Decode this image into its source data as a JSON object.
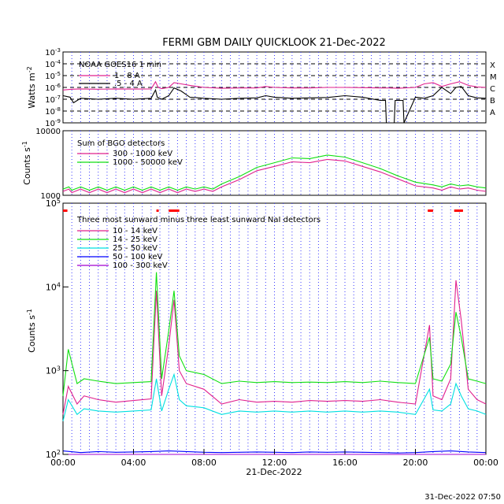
{
  "title": "FERMI GBM DAILY QUICKLOOK  21-Dec-2022",
  "footer_timestamp": "31-Dec-2022 07:50",
  "colors": {
    "magenta": "#e0208e",
    "green": "#10e010",
    "cyan": "#00e0e0",
    "blue": "#0000ff",
    "purple": "#a000d0",
    "black": "#000000",
    "red": "#ff0000",
    "grid_blue": "#3a3aff"
  },
  "chart_data": [
    {
      "id": "goes",
      "type": "line",
      "ylabel": "Watts m^-2",
      "yscale": "log",
      "ylim": [
        1e-09,
        0.001
      ],
      "y_ticks": [
        "10^-9",
        "10^-8",
        "10^-7",
        "10^-6",
        "10^-5",
        "10^-4",
        "10^-3"
      ],
      "flare_classes": [
        "A",
        "B",
        "C",
        "M",
        "X"
      ],
      "legend_title": "NOAA GOES16 1 min",
      "series": [
        {
          "name": "1 - 8 A",
          "color": "magenta",
          "x": [
            0,
            0.5,
            1,
            2,
            3,
            4,
            5,
            5.25,
            5.4,
            5.6,
            6,
            6.3,
            6.7,
            7.2,
            8,
            9,
            10,
            11,
            11.5,
            12,
            13,
            14,
            15,
            16,
            17,
            18,
            18.5,
            19,
            20,
            20.5,
            21,
            21.5,
            22,
            22.5,
            23,
            23.5,
            24
          ],
          "values": [
            6e-07,
            7e-07,
            7.5e-07,
            7e-07,
            7.5e-07,
            7.2e-07,
            7.5e-07,
            3e-06,
            1e-06,
            8e-07,
            1e-06,
            2.5e-06,
            2e-06,
            1.5e-06,
            1e-06,
            8.5e-07,
            9e-07,
            9e-07,
            1.2e-06,
            1e-06,
            9e-07,
            9e-07,
            1e-06,
            1e-06,
            9.5e-07,
            9e-07,
            9e-07,
            8.5e-07,
            1e-06,
            2e-06,
            2.5e-06,
            1.2e-06,
            2e-06,
            3e-06,
            1.5e-06,
            1.1e-06,
            1e-06
          ]
        },
        {
          "name": ".5 - 4 A",
          "color": "black",
          "x": [
            0,
            0.4,
            0.6,
            1,
            2,
            3,
            4,
            5,
            5.25,
            5.35,
            5.6,
            6,
            6.3,
            6.7,
            7.2,
            8,
            9,
            10,
            11,
            11.5,
            12,
            13,
            14,
            15,
            16,
            17,
            18,
            18.3,
            18.35,
            18.8,
            18.85,
            19.3,
            19.35,
            20,
            20.5,
            21,
            21.5,
            22,
            22.3,
            22.6,
            23,
            23.5,
            24
          ],
          "values": [
            2e-07,
            1.5e-07,
            5e-08,
            1.2e-07,
            1e-07,
            1.2e-07,
            1e-07,
            1.2e-07,
            6e-07,
            1.5e-07,
            1e-07,
            2e-07,
            9e-07,
            5e-07,
            1.5e-07,
            1.2e-07,
            1e-07,
            1.2e-07,
            1.3e-07,
            2e-07,
            1.5e-07,
            1.2e-07,
            1.3e-07,
            1.4e-07,
            2e-07,
            1.5e-07,
            8e-08,
            8e-08,
            1e-09,
            1e-09,
            8e-08,
            8e-08,
            1e-09,
            1.5e-07,
            1.2e-07,
            2e-07,
            1e-06,
            3e-07,
            1e-06,
            1.2e-06,
            2e-07,
            1.3e-07,
            1.2e-07
          ]
        }
      ]
    },
    {
      "id": "bgo",
      "type": "line",
      "ylabel": "Counts s^-1",
      "yscale": "log",
      "ylim": [
        1000,
        10000
      ],
      "y_ticks": [
        "1000",
        "10000"
      ],
      "legend_title": "Sum of BGO detectors",
      "series": [
        {
          "name": "300 - 1000 keV",
          "color": "magenta",
          "x": [
            0,
            0.33,
            0.5,
            1,
            1.5,
            2,
            2.5,
            3,
            3.5,
            4,
            4.5,
            5,
            5.5,
            6,
            6.5,
            7,
            7.5,
            8,
            8.5,
            9,
            10,
            11,
            12,
            13,
            14,
            15,
            16,
            17,
            18,
            19,
            20,
            21,
            21.5,
            22,
            22.5,
            23,
            23.5,
            24
          ],
          "values": [
            1150,
            1250,
            1100,
            1250,
            1100,
            1250,
            1100,
            1250,
            1100,
            1250,
            1100,
            1250,
            1100,
            1250,
            1100,
            1250,
            1150,
            1250,
            1150,
            1350,
            1750,
            2400,
            2800,
            3300,
            3200,
            3600,
            3400,
            2800,
            2300,
            1800,
            1400,
            1300,
            1200,
            1350,
            1250,
            1300,
            1200,
            1150
          ]
        },
        {
          "name": "1000 - 50000 keV",
          "color": "green",
          "x": [
            0,
            0.33,
            0.5,
            1,
            1.5,
            2,
            2.5,
            3,
            3.5,
            4,
            4.5,
            5,
            5.5,
            6,
            6.5,
            7,
            7.5,
            8,
            8.5,
            9,
            10,
            11,
            12,
            13,
            14,
            15,
            16,
            17,
            18,
            19,
            20,
            21,
            21.5,
            22,
            22.5,
            23,
            23.5,
            24
          ],
          "values": [
            1250,
            1350,
            1200,
            1350,
            1200,
            1350,
            1200,
            1350,
            1200,
            1350,
            1200,
            1350,
            1200,
            1350,
            1200,
            1350,
            1250,
            1350,
            1250,
            1500,
            1950,
            2700,
            3200,
            3800,
            3700,
            4200,
            3900,
            3200,
            2600,
            2000,
            1600,
            1450,
            1350,
            1500,
            1400,
            1450,
            1350,
            1300
          ]
        }
      ]
    },
    {
      "id": "nai",
      "type": "line",
      "ylabel": "Counts s^-1",
      "yscale": "log",
      "ylim": [
        100,
        100000
      ],
      "y_ticks": [
        "10^2",
        "10^3",
        "10^4",
        "10^5"
      ],
      "legend_title": "Three most sunward minus three least sunward NaI detectors",
      "x_ticks": [
        "00:00",
        "04:00",
        "08:00",
        "12:00",
        "16:00",
        "20:00",
        "00:00"
      ],
      "x_label": "21-Dec-2022",
      "xlim": [
        0,
        24
      ],
      "series": [
        {
          "name": "10 - 14 keV",
          "color": "magenta",
          "x": [
            0,
            0.3,
            0.8,
            1.2,
            2,
            3,
            4,
            5,
            5.3,
            5.6,
            6,
            6.3,
            6.6,
            7,
            8,
            9,
            10,
            11,
            12,
            13,
            14,
            15,
            16,
            17,
            18,
            19,
            20,
            20.8,
            21,
            21.5,
            22,
            22.3,
            22.6,
            23,
            23.5,
            24
          ],
          "values": [
            300,
            650,
            400,
            500,
            450,
            420,
            440,
            460,
            9000,
            500,
            2000,
            7000,
            1000,
            700,
            600,
            400,
            450,
            420,
            430,
            420,
            440,
            430,
            440,
            430,
            450,
            420,
            400,
            3500,
            500,
            450,
            800,
            12000,
            4000,
            600,
            450,
            400
          ]
        },
        {
          "name": "14 - 25 keV",
          "color": "green",
          "x": [
            0,
            0.3,
            0.8,
            1.2,
            2,
            3,
            4,
            5,
            5.3,
            5.6,
            6,
            6.3,
            6.6,
            7,
            8,
            9,
            10,
            11,
            12,
            13,
            14,
            15,
            16,
            17,
            18,
            19,
            20,
            20.8,
            21,
            21.5,
            22,
            22.3,
            22.6,
            23,
            23.5,
            24
          ],
          "values": [
            500,
            1800,
            700,
            800,
            750,
            700,
            720,
            740,
            15000,
            800,
            3000,
            9000,
            1500,
            1000,
            900,
            700,
            750,
            720,
            740,
            720,
            730,
            720,
            740,
            720,
            750,
            720,
            700,
            2500,
            800,
            750,
            1200,
            5000,
            2500,
            800,
            750,
            700
          ]
        },
        {
          "name": "25 - 50 keV",
          "color": "cyan",
          "x": [
            0,
            0.3,
            0.8,
            1.2,
            2,
            3,
            4,
            5,
            5.3,
            5.6,
            6,
            6.3,
            6.6,
            7,
            8,
            9,
            10,
            11,
            12,
            13,
            14,
            15,
            16,
            17,
            18,
            19,
            20,
            20.8,
            21,
            21.5,
            22,
            22.3,
            22.6,
            23,
            23.5,
            24
          ],
          "values": [
            250,
            450,
            300,
            350,
            330,
            320,
            330,
            340,
            800,
            330,
            600,
            900,
            450,
            380,
            360,
            300,
            330,
            320,
            330,
            320,
            330,
            320,
            330,
            320,
            330,
            320,
            300,
            600,
            340,
            330,
            400,
            700,
            500,
            350,
            330,
            300
          ]
        },
        {
          "name": "50 - 100 keV",
          "color": "blue",
          "x": [
            0,
            1,
            2,
            3,
            4,
            5,
            6,
            7,
            8,
            9,
            10,
            11,
            12,
            13,
            14,
            15,
            16,
            17,
            18,
            19,
            20,
            21,
            22,
            23,
            24
          ],
          "values": [
            110,
            105,
            108,
            106,
            107,
            108,
            110,
            108,
            106,
            105,
            106,
            107,
            106,
            105,
            107,
            106,
            107,
            106,
            105,
            104,
            105,
            108,
            110,
            107,
            105
          ]
        },
        {
          "name": "100 - 300 keV",
          "color": "purple",
          "x": [
            0,
            24
          ],
          "values": [
            100,
            100
          ]
        }
      ]
    }
  ]
}
